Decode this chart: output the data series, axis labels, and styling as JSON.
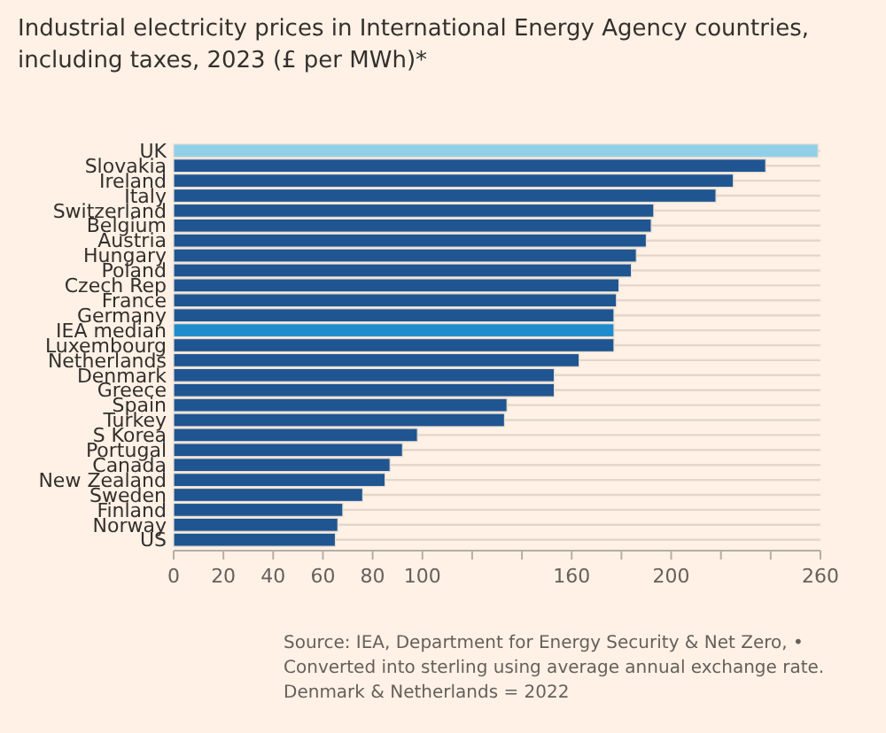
{
  "chart_data": {
    "type": "bar",
    "orientation": "horizontal",
    "title": "Industrial electricity prices in International Energy Agency countries, including taxes, 2023 (£ per MWh)*",
    "categories": [
      "UK",
      "Slovakia",
      "Ireland",
      "Italy",
      "Switzerland",
      "Belgium",
      "Austria",
      "Hungary",
      "Poland",
      "Czech Rep",
      "France",
      "Germany",
      "IEA median",
      "Luxembourg",
      "Netherlands",
      "Denmark",
      "Greece",
      "Spain",
      "Turkey",
      "S Korea",
      "Portugal",
      "Canada",
      "New Zealand",
      "Sweden",
      "Finland",
      "Norway",
      "US"
    ],
    "values": [
      259,
      238,
      225,
      218,
      193,
      192,
      190,
      186,
      184,
      179,
      178,
      177,
      177,
      177,
      163,
      153,
      153,
      134,
      133,
      98,
      92,
      87,
      85,
      76,
      68,
      66,
      65
    ],
    "colors": [
      "#8fd0e8",
      "#1f5591",
      "#1f5591",
      "#1f5591",
      "#1f5591",
      "#1f5591",
      "#1f5591",
      "#1f5591",
      "#1f5591",
      "#1f5591",
      "#1f5591",
      "#1f5591",
      "#1f8ccc",
      "#1f5591",
      "#1f5591",
      "#1f5591",
      "#1f5591",
      "#1f5591",
      "#1f5591",
      "#1f5591",
      "#1f5591",
      "#1f5591",
      "#1f5591",
      "#1f5591",
      "#1f5591",
      "#1f5591",
      "#1f5591"
    ],
    "xlim": [
      0,
      260
    ],
    "xticks": [
      0,
      20,
      40,
      60,
      80,
      100,
      {
        "value": 120,
        "label": null
      },
      {
        "value": 140,
        "label": null
      },
      160,
      {
        "value": 180,
        "label": null
      },
      200,
      {
        "value": 220,
        "label": null
      },
      {
        "value": 240,
        "label": null
      },
      260
    ],
    "grid": "y",
    "annotations": [
      "Source: IEA, Department for Energy Security & Net Zero, • Converted into sterling using average annual exchange rate. Denmark & Netherlands = 2022"
    ]
  }
}
